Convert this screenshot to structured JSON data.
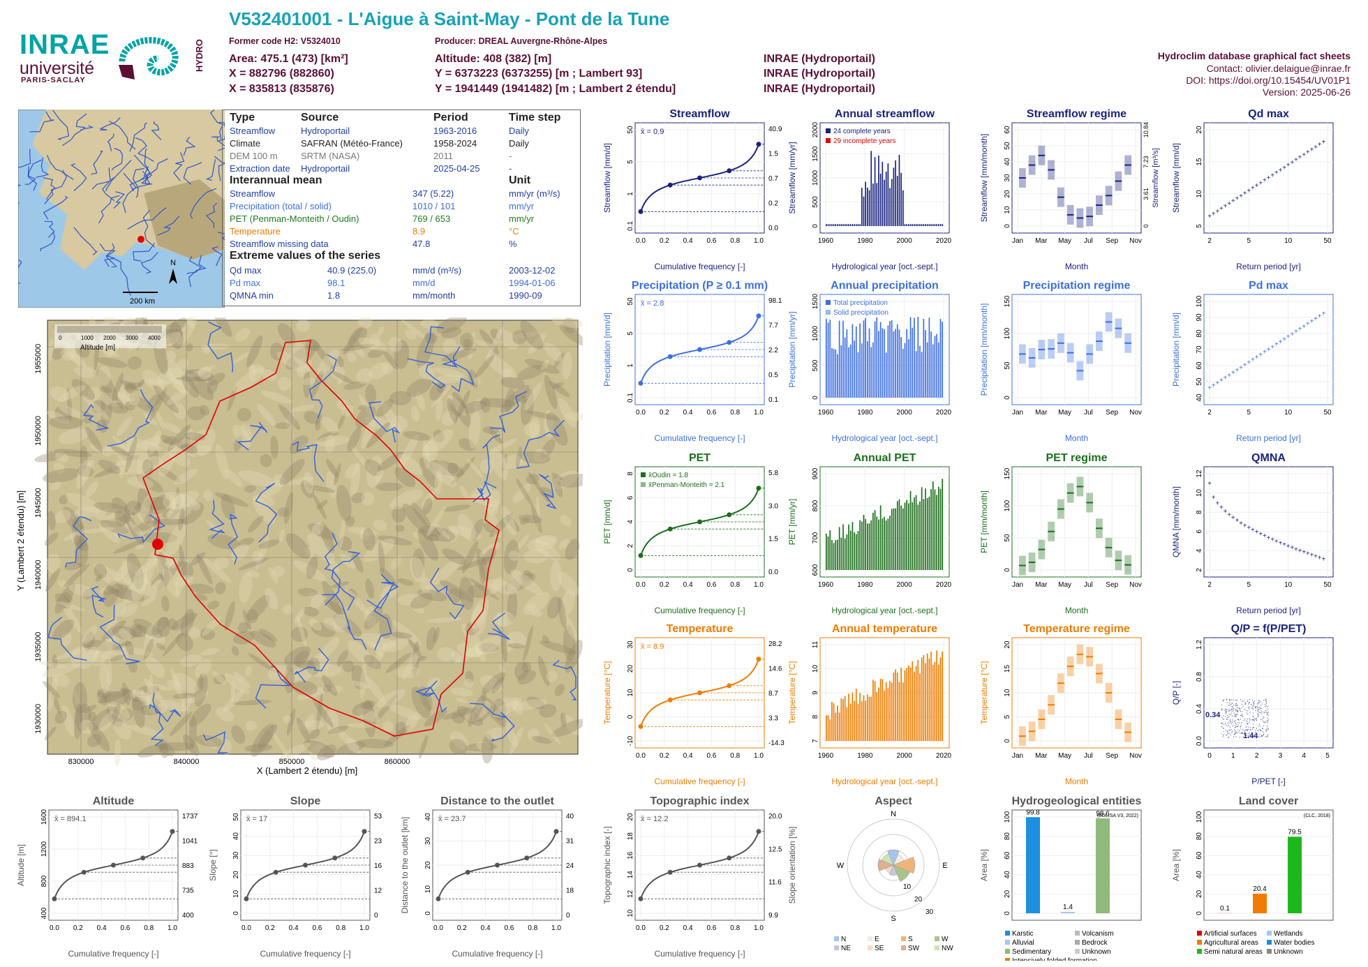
{
  "header": {
    "title": "V532401001 - L'Aigue à Saint-May - Pont de la Tune",
    "former_code": "Former code H2: V5324010",
    "producer": "Producer: DREAL Auvergne-Rhône-Alpes",
    "area": "Area: 475.1 (473) [km²]",
    "altitude": "Altitude: 408 (382) [m]",
    "x93": "X = 882796 (882860)",
    "y93": "Y = 6373223 (6373255) [m ; Lambert 93]",
    "x2": "X = 835813 (835876)",
    "y2": "Y = 1941449 (1941482) [m ; Lambert 2 étendu]",
    "src1": "INRAE (Hydroportail)",
    "src2": "INRAE (Hydroportail)",
    "src3": "INRAE (Hydroportail)"
  },
  "right_header": {
    "line1": "Hydroclim database graphical fact sheets",
    "line2": "Contact: olivier.delaigue@inrae.fr",
    "line3": "DOI: https://doi.org/10.15454/UV01P1",
    "line4": "Version: 2025-06-26"
  },
  "logo": {
    "inrae": "INRAE",
    "univ": "université",
    "ps": "PARIS-SACLAY",
    "hydro": "HYDRO"
  },
  "locator_map": {
    "scale": "200 km",
    "north": "N"
  },
  "info_table": {
    "h_type": "Type",
    "h_source": "Source",
    "h_period": "Period",
    "h_step": "Time step",
    "rows": [
      {
        "type": "Streamflow",
        "source": "Hydroportail",
        "period": "1963-2016",
        "step": "Daily",
        "color": "#1f3fa8"
      },
      {
        "type": "Climate",
        "source": "SAFRAN (Météo-France)",
        "period": "1958-2024",
        "step": "Daily",
        "color": "#222222"
      },
      {
        "type": "DEM 100 m",
        "source": "SRTM (NASA)",
        "period": "2011",
        "step": "-",
        "color": "#777777"
      },
      {
        "type": "Extraction date",
        "source": "Hydroportail",
        "period": "2025-04-25",
        "step": "-",
        "color": "#1f3fa8"
      }
    ],
    "h_interannual": "Interannual mean",
    "h_unit": "Unit",
    "mean_rows": [
      {
        "label": "Streamflow",
        "value": "347 (5.22)",
        "unit": "mm/yr (m³/s)",
        "color": "#1f3fa8"
      },
      {
        "label": "Precipitation (total / solid)",
        "value": "1010 / 101",
        "unit": "mm/yr",
        "color": "#3d6fe0"
      },
      {
        "label": "PET (Penman-Monteith / Oudin)",
        "value": "769 / 653",
        "unit": "mm/yr",
        "color": "#1e7b1e"
      },
      {
        "label": "Temperature",
        "value": "8.9",
        "unit": "°C",
        "color": "#ef7c00"
      },
      {
        "label": "Streamflow missing data",
        "value": "47.8",
        "unit": "%",
        "color": "#1f3fa8"
      }
    ],
    "h_extreme": "Extreme values of the series",
    "extreme_rows": [
      {
        "label": "Qd max",
        "value": "40.9 (225.0)",
        "unit": "mm/d (m³/s)",
        "date": "2003-12-02",
        "color": "#1f3fa8"
      },
      {
        "label": "Pd max",
        "value": "98.1",
        "unit": "mm/d",
        "date": "1994-01-06",
        "color": "#3d6fe0"
      },
      {
        "label": "QMNA min",
        "value": "1.8",
        "unit": "mm/month",
        "date": "1990-09",
        "color": "#1f3fa8"
      }
    ]
  },
  "catchment_map": {
    "xlabel": "X (Lambert 2 étendu) [m]",
    "ylabel": "Y (Lambert 2 étendu) [m]",
    "x_ticks": [
      "830000",
      "840000",
      "850000",
      "860000"
    ],
    "y_ticks": [
      "1955000",
      "1950000",
      "1945000",
      "1940000",
      "1935000",
      "1930000"
    ],
    "legend_title": "Altitude [m]",
    "legend_ticks": [
      "0",
      "1000",
      "2000",
      "3000",
      "4000"
    ]
  },
  "colors": {
    "flow": "#1a237e",
    "precip": "#3d6fe0",
    "pet": "#1b6e1b",
    "temp": "#ef7c00",
    "topo": "#555555",
    "map_line": "#e00000"
  },
  "chart_data": [
    {
      "id": "streamflow",
      "type": "line",
      "title": "Streamflow",
      "xlabel": "Cumulative frequency [-]",
      "ylabel": "Streamflow [mm/d]",
      "annot": "x̄ = 0.9",
      "ylog": true,
      "xlim": [
        0,
        1
      ],
      "x_ticks": [
        "0.0",
        "0.2",
        "0.4",
        "0.6",
        "0.8",
        "1.0"
      ],
      "y_ticks": [
        "0.1",
        "1",
        "5",
        "50"
      ],
      "right_labels": [
        "40.9",
        "1.5",
        "0.7",
        "0.2",
        "0.0"
      ]
    },
    {
      "id": "annual_streamflow",
      "type": "bar",
      "title": "Annual streamflow",
      "xlabel": "Hydrological year [oct.-sept.]",
      "ylabel": "Streamflow [mm/yr]",
      "legend": [
        "24 complete years",
        "29 incomplete years"
      ],
      "x_ticks": [
        "1960",
        "1980",
        "2000",
        "2020"
      ],
      "y_ticks": [
        "0",
        "500",
        "1000",
        "1500",
        "2000"
      ]
    },
    {
      "id": "streamflow_regime",
      "type": "bar",
      "title": "Streamflow regime",
      "xlabel": "Month",
      "ylabel": "Streamflow [mm/month]",
      "right_ylabel": "Streamflow [m³/s]",
      "x_ticks": [
        "Jan",
        "Mar",
        "May",
        "Jul",
        "Sep",
        "Nov"
      ],
      "y_ticks": [
        "0",
        "10",
        "20",
        "30",
        "40",
        "50",
        "60"
      ],
      "right_ticks": [
        "0",
        "3.61",
        "7.23",
        "10.84"
      ],
      "medians": [
        30,
        38,
        44,
        35,
        18,
        7,
        5,
        6,
        13,
        19,
        28,
        38
      ]
    },
    {
      "id": "qd_max",
      "type": "scatter",
      "title": "Qd max",
      "xlabel": "Return period [yr]",
      "ylabel": "Streamflow [mm/d]",
      "x_ticks": [
        "2",
        "5",
        "10",
        "50"
      ],
      "y_ticks": [
        "5",
        "10",
        "15",
        "20"
      ]
    },
    {
      "id": "precipitation",
      "type": "line",
      "title": "Precipitation (P ≥ 0.1 mm)",
      "xlabel": "Cumulative frequency [-]",
      "ylabel": "Precipitation [mm/d]",
      "annot": "x̄ = 2.8",
      "x_ticks": [
        "0.0",
        "0.2",
        "0.4",
        "0.6",
        "0.8",
        "1.0"
      ],
      "y_ticks": [
        "0.1",
        "1",
        "5",
        "50"
      ],
      "right_labels": [
        "98.1",
        "7.7",
        "2.2",
        "0.5",
        "0.1"
      ]
    },
    {
      "id": "annual_precipitation",
      "type": "bar",
      "title": "Annual precipitation",
      "xlabel": "Hydrological year [oct.-sept.]",
      "ylabel": "Precipitation [mm/yr]",
      "legend": [
        "Total precipitation",
        "Solid precipitation"
      ],
      "x_ticks": [
        "1960",
        "1980",
        "2000",
        "2020"
      ],
      "y_ticks": [
        "0",
        "500",
        "1000",
        "1500"
      ]
    },
    {
      "id": "precipitation_regime",
      "type": "bar",
      "title": "Precipitation regime",
      "xlabel": "Month",
      "ylabel": "Precipitation [mm/month]",
      "x_ticks": [
        "Jan",
        "Mar",
        "May",
        "Jul",
        "Sep",
        "Nov"
      ],
      "y_ticks": [
        "0",
        "50",
        "100",
        "150"
      ],
      "medians": [
        68,
        62,
        75,
        76,
        85,
        70,
        42,
        68,
        88,
        118,
        108,
        85
      ]
    },
    {
      "id": "pd_max",
      "type": "scatter",
      "title": "Pd max",
      "xlabel": "Return period [yr]",
      "ylabel": "Precipitation [mm/d]",
      "x_ticks": [
        "2",
        "5",
        "10",
        "50"
      ],
      "y_ticks": [
        "40",
        "50",
        "60",
        "70",
        "80",
        "90",
        "100"
      ]
    },
    {
      "id": "pet",
      "type": "line",
      "title": "PET",
      "xlabel": "Cumulative frequency [-]",
      "ylabel": "PET [mm/d]",
      "legend": [
        "x̄Oudin = 1.8",
        "x̄Penman-Monteith = 2.1"
      ],
      "x_ticks": [
        "0.0",
        "0.2",
        "0.4",
        "0.6",
        "0.8",
        "1.0"
      ],
      "y_ticks": [
        "0",
        "2",
        "4",
        "6",
        "8"
      ],
      "right_labels": [
        "5.8",
        "3.0",
        "1.5",
        "0.0"
      ]
    },
    {
      "id": "annual_pet",
      "type": "bar",
      "title": "Annual PET",
      "xlabel": "Hydrological year [oct.-sept.]",
      "ylabel": "PET [mm/yr]",
      "x_ticks": [
        "1960",
        "1980",
        "2000",
        "2020"
      ],
      "y_ticks": [
        "600",
        "700",
        "800",
        "900"
      ]
    },
    {
      "id": "pet_regime",
      "type": "bar",
      "title": "PET regime",
      "xlabel": "Month",
      "ylabel": "PET [mm/month]",
      "x_ticks": [
        "Jan",
        "Mar",
        "May",
        "Jul",
        "Sep",
        "Nov"
      ],
      "y_ticks": [
        "0",
        "50",
        "100",
        "150"
      ],
      "medians": [
        7,
        12,
        32,
        60,
        95,
        120,
        130,
        105,
        65,
        35,
        15,
        8
      ]
    },
    {
      "id": "qmna",
      "type": "scatter",
      "title": "QMNA",
      "xlabel": "Return period [yr]",
      "ylabel": "QMNA [mm/month]",
      "x_ticks": [
        "2",
        "5",
        "10",
        "50"
      ],
      "y_ticks": [
        "2",
        "4",
        "6",
        "8",
        "10",
        "12"
      ]
    },
    {
      "id": "temperature",
      "type": "line",
      "title": "Temperature",
      "xlabel": "Cumulative frequency [-]",
      "ylabel": "Temperature [°C]",
      "annot": "x̄ = 8.9",
      "x_ticks": [
        "0.0",
        "0.2",
        "0.4",
        "0.6",
        "0.8",
        "1.0"
      ],
      "y_ticks": [
        "-10",
        "0",
        "10",
        "20",
        "30"
      ],
      "right_labels": [
        "28.2",
        "14.6",
        "8.7",
        "3.3",
        "-14.3"
      ]
    },
    {
      "id": "annual_temperature",
      "type": "bar",
      "title": "Annual temperature",
      "xlabel": "Hydrological year [oct.-sept.]",
      "ylabel": "Temperature [°C]",
      "x_ticks": [
        "1960",
        "1980",
        "2000",
        "2020"
      ],
      "y_ticks": [
        "7",
        "8",
        "9",
        "10",
        "11"
      ]
    },
    {
      "id": "temperature_regime",
      "type": "bar",
      "title": "Temperature regime",
      "xlabel": "Month",
      "ylabel": "Temperature [°C]",
      "x_ticks": [
        "Jan",
        "Mar",
        "May",
        "Jul",
        "Sep",
        "Nov"
      ],
      "y_ticks": [
        "0",
        "5",
        "10",
        "15",
        "20"
      ],
      "medians": [
        1,
        2,
        4.5,
        7.5,
        12,
        15.5,
        18,
        17.5,
        14,
        10,
        4.5,
        1.8
      ]
    },
    {
      "id": "qp_ppet",
      "type": "scatter",
      "title": "Q/P = f(P/PET)",
      "xlabel": "P/PET [-]",
      "ylabel": "Q/P [-]",
      "x_ticks": [
        "0",
        "1",
        "2",
        "3",
        "4",
        "5"
      ],
      "y_ticks": [
        "0.0",
        "0.4",
        "0.8",
        "1.2"
      ],
      "annot_x": "1.44",
      "annot_y": "0.34"
    },
    {
      "id": "altitude",
      "type": "line",
      "title": "Altitude",
      "xlabel": "Cumulative frequency [-]",
      "ylabel": "Altitude [m]",
      "annot": "x̄ = 894.1",
      "x_ticks": [
        "0.0",
        "0.2",
        "0.4",
        "0.6",
        "0.8",
        "1.0"
      ],
      "y_ticks": [
        "400",
        "800",
        "1200",
        "1600"
      ],
      "right_labels": [
        "1737",
        "1041",
        "883",
        "735",
        "400"
      ]
    },
    {
      "id": "slope",
      "type": "line",
      "title": "Slope",
      "xlabel": "Cumulative frequency [-]",
      "ylabel": "Slope [°]",
      "annot": "x̄ = 17",
      "x_ticks": [
        "0.0",
        "0.2",
        "0.4",
        "0.6",
        "0.8",
        "1.0"
      ],
      "y_ticks": [
        "0",
        "10",
        "20",
        "30",
        "40",
        "50"
      ],
      "right_labels": [
        "53",
        "23",
        "16",
        "12",
        "0"
      ]
    },
    {
      "id": "distance",
      "type": "line",
      "title": "Distance to the outlet",
      "xlabel": "Cumulative frequency [-]",
      "ylabel": "Distance to the outlet [km]",
      "annot": "x̄ = 23.7",
      "x_ticks": [
        "0.0",
        "0.2",
        "0.4",
        "0.6",
        "0.8",
        "1.0"
      ],
      "y_ticks": [
        "0",
        "10",
        "20",
        "30",
        "40"
      ],
      "right_labels": [
        "40",
        "31",
        "24",
        "18",
        "0"
      ]
    },
    {
      "id": "topo_index",
      "type": "line",
      "title": "Topographic index",
      "xlabel": "Cumulative frequency [-]",
      "ylabel": "Topographic index [-]",
      "annot": "x̄ = 12.2",
      "x_ticks": [
        "0.0",
        "0.2",
        "0.4",
        "0.6",
        "0.8",
        "1.0"
      ],
      "y_ticks": [
        "10",
        "12",
        "14",
        "16",
        "18",
        "20"
      ],
      "right_labels": [
        "20.0",
        "12.5",
        "11.6",
        "9.9"
      ]
    },
    {
      "id": "aspect",
      "type": "pie",
      "title": "Aspect",
      "ylabel": "Slope orientation [%]",
      "dirs": [
        "N",
        "E",
        "S",
        "W"
      ],
      "rings": [
        "10",
        "20",
        "30"
      ],
      "legend": [
        "N",
        "E",
        "S",
        "W",
        "NE",
        "SE",
        "SW",
        "NW"
      ]
    },
    {
      "id": "hydrogeology",
      "type": "bar",
      "title": "Hydrogeological entities",
      "source": "(BDLISA V3, 2022)",
      "ylabel": "Area [%]",
      "values": [
        99.8,
        1.4,
        98.6
      ],
      "value_labels": [
        "99.8",
        "1.4",
        "98.6"
      ],
      "y_ticks": [
        "0",
        "20",
        "40",
        "60",
        "80",
        "100"
      ],
      "legend": [
        "Karstic",
        "Volcanism",
        "Alluvial",
        "Bedrock",
        "Sedimentary",
        "Unknown",
        "Intensively folded formation"
      ]
    },
    {
      "id": "land_cover",
      "type": "bar",
      "title": "Land cover",
      "source": "(CLC, 2018)",
      "ylabel": "Area [%]",
      "values": [
        0.1,
        20.4,
        79.5
      ],
      "value_labels": [
        "0.1",
        "20.4",
        "79.5"
      ],
      "y_ticks": [
        "0",
        "20",
        "40",
        "60",
        "80",
        "100"
      ],
      "legend": [
        "Artificial surfaces",
        "Wetlands",
        "Agricultural areas",
        "Water bodies",
        "Semi natural areas",
        "Unknown"
      ]
    }
  ]
}
